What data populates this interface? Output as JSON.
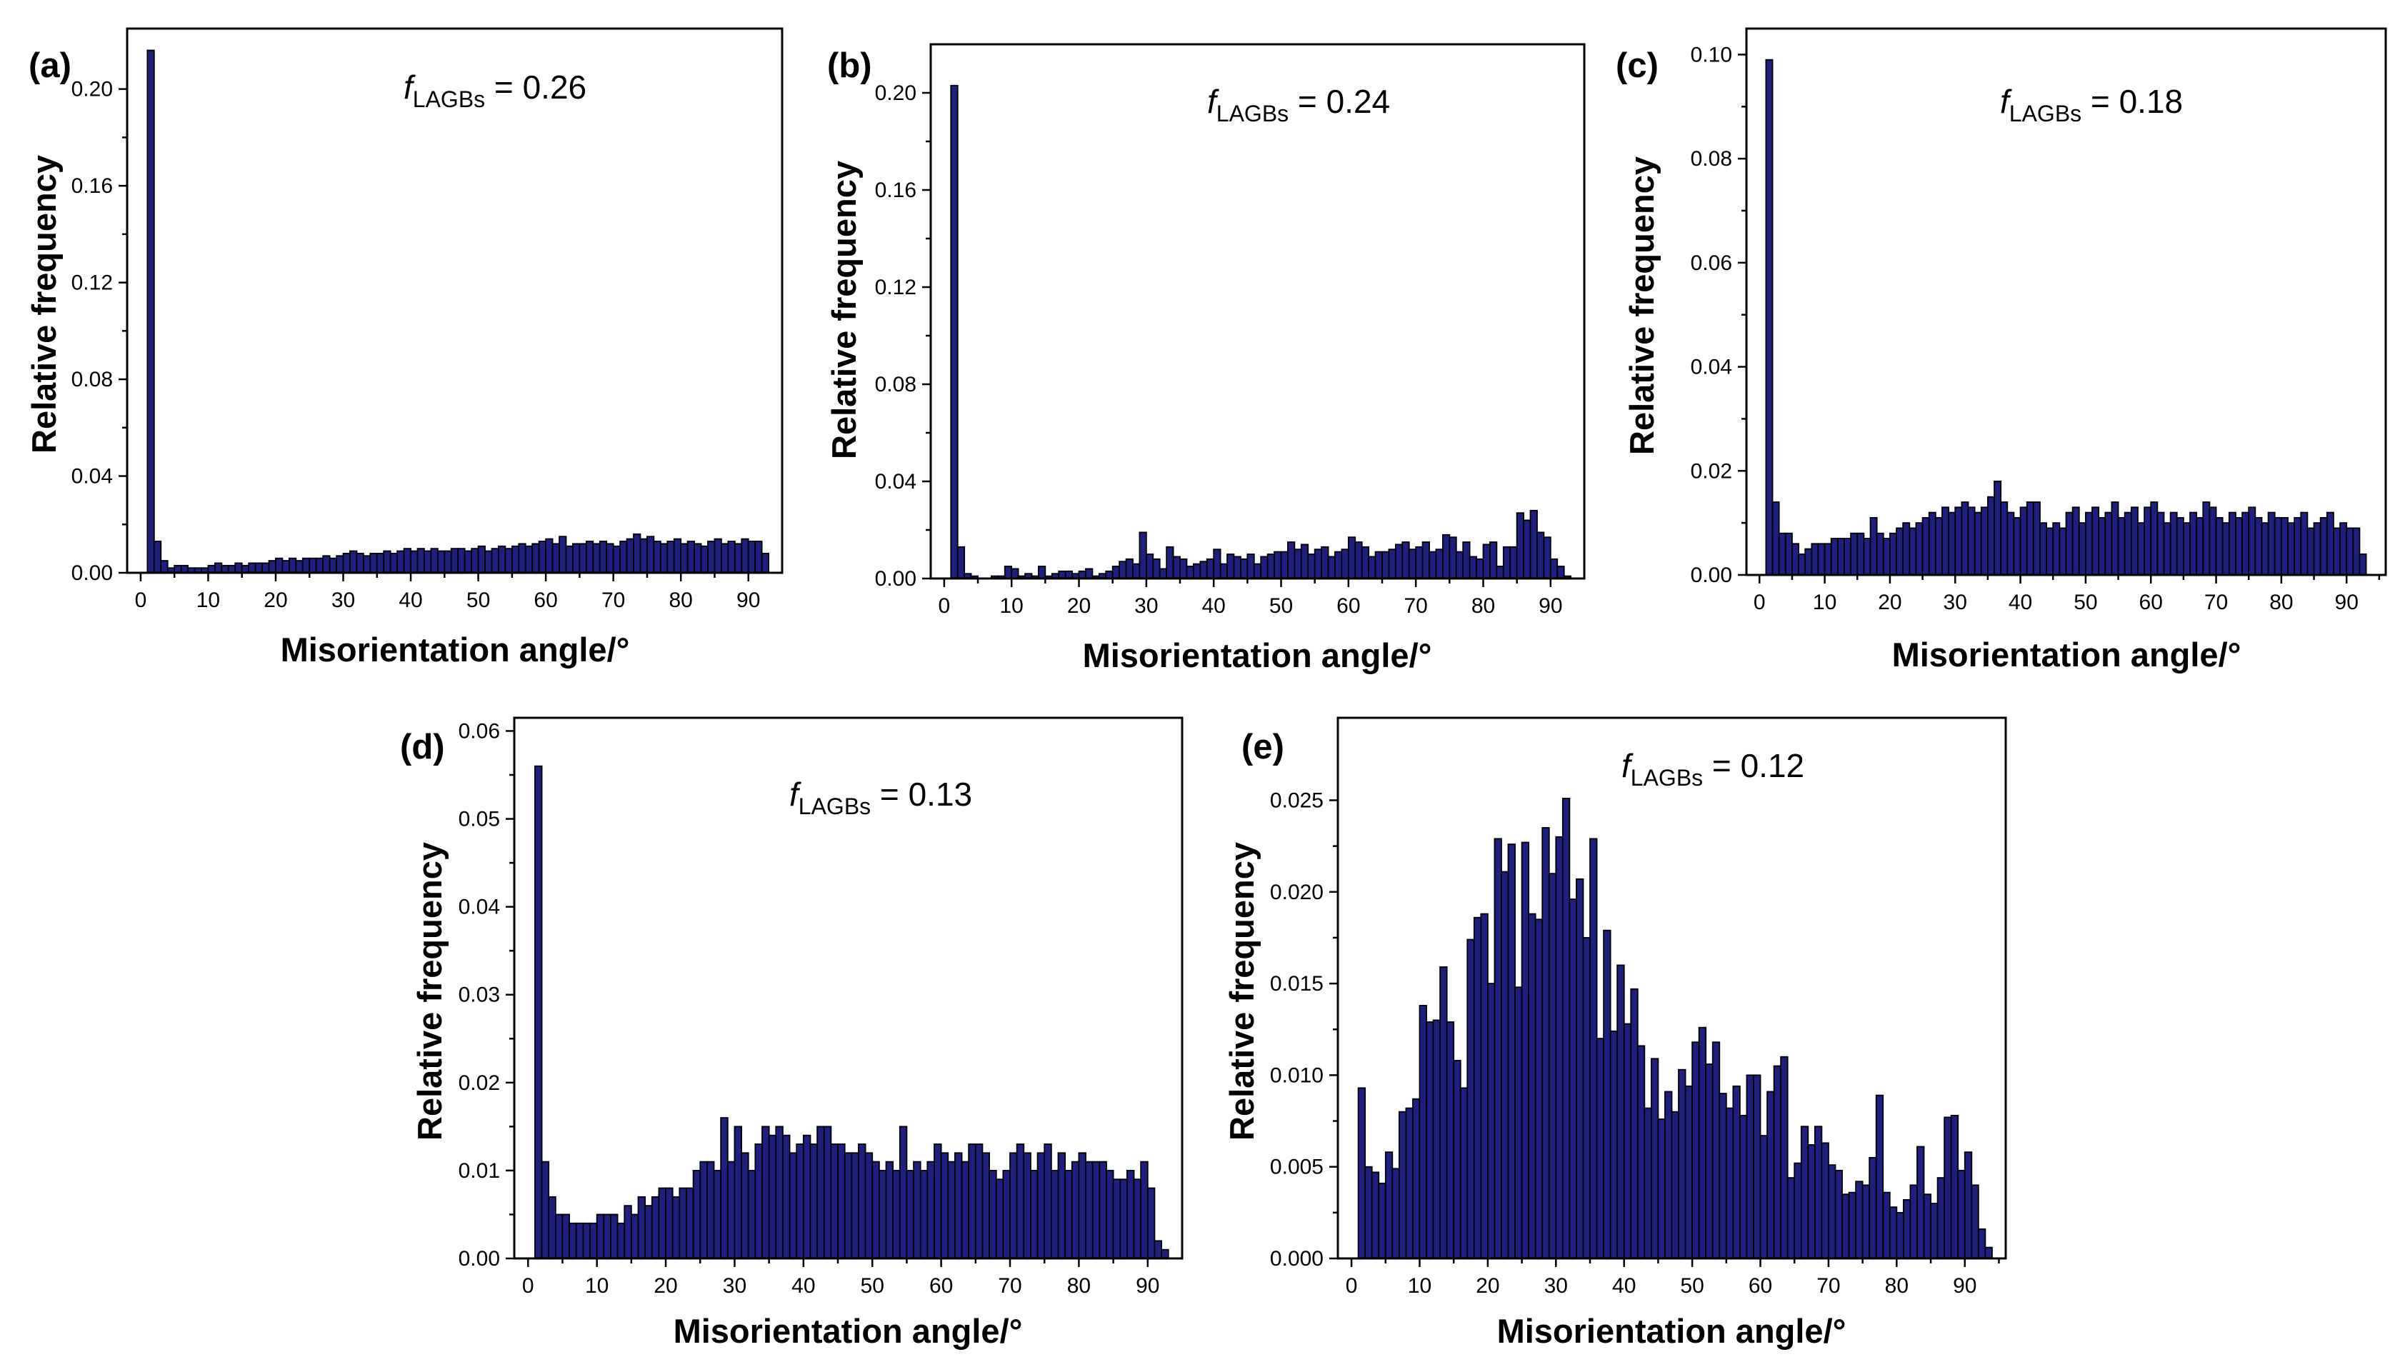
{
  "figure": "Misorientation angle distributions, panels (a)-(e)",
  "chart_data": [
    {
      "type": "bar",
      "panel_label": "(a)",
      "annotation": {
        "symbol": "f",
        "subscript": "LAGBs",
        "text": " = 0.26"
      },
      "xlabel": "Misorientation angle/°",
      "ylabel": "Relative frequency",
      "xlim": [
        -2,
        95
      ],
      "ylim": [
        0,
        0.225
      ],
      "xticks": [
        0,
        10,
        20,
        30,
        40,
        50,
        60,
        70,
        80,
        90
      ],
      "yticks": [
        0.0,
        0.04,
        0.08,
        0.12,
        0.16,
        0.2
      ],
      "ytick_labels": [
        "0.00",
        "0.04",
        "0.08",
        "0.12",
        "0.16",
        "0.20"
      ],
      "bin_width": 1,
      "bin_start": 1,
      "values": [
        0.216,
        0.013,
        0.005,
        0.002,
        0.003,
        0.003,
        0.002,
        0.002,
        0.002,
        0.003,
        0.004,
        0.003,
        0.003,
        0.004,
        0.003,
        0.004,
        0.004,
        0.004,
        0.005,
        0.006,
        0.005,
        0.006,
        0.005,
        0.006,
        0.006,
        0.006,
        0.007,
        0.006,
        0.007,
        0.008,
        0.009,
        0.008,
        0.007,
        0.008,
        0.008,
        0.009,
        0.008,
        0.009,
        0.01,
        0.009,
        0.01,
        0.009,
        0.01,
        0.009,
        0.009,
        0.01,
        0.01,
        0.009,
        0.01,
        0.011,
        0.009,
        0.01,
        0.011,
        0.01,
        0.011,
        0.012,
        0.011,
        0.012,
        0.013,
        0.014,
        0.012,
        0.015,
        0.011,
        0.012,
        0.012,
        0.013,
        0.012,
        0.013,
        0.012,
        0.011,
        0.013,
        0.014,
        0.016,
        0.014,
        0.015,
        0.013,
        0.012,
        0.013,
        0.014,
        0.012,
        0.013,
        0.012,
        0.011,
        0.013,
        0.014,
        0.012,
        0.013,
        0.012,
        0.014,
        0.013,
        0.013,
        0.008
      ]
    },
    {
      "type": "bar",
      "panel_label": "(b)",
      "annotation": {
        "symbol": "f",
        "subscript": "LAGBs",
        "text": " = 0.24"
      },
      "xlabel": "Misorientation angle/°",
      "ylabel": "Relative frequency",
      "xlim": [
        -2,
        95
      ],
      "ylim": [
        0,
        0.22
      ],
      "xticks": [
        0,
        10,
        20,
        30,
        40,
        50,
        60,
        70,
        80,
        90
      ],
      "yticks": [
        0.0,
        0.04,
        0.08,
        0.12,
        0.16,
        0.2
      ],
      "ytick_labels": [
        "0.00",
        "0.04",
        "0.08",
        "0.12",
        "0.16",
        "0.20"
      ],
      "bin_width": 1,
      "bin_start": 1,
      "values": [
        0.203,
        0.013,
        0.002,
        0.001,
        0.0,
        0.0,
        0.001,
        0.001,
        0.005,
        0.004,
        0.001,
        0.002,
        0.001,
        0.005,
        0.001,
        0.002,
        0.003,
        0.003,
        0.002,
        0.003,
        0.004,
        0.001,
        0.002,
        0.003,
        0.005,
        0.007,
        0.008,
        0.006,
        0.019,
        0.01,
        0.008,
        0.004,
        0.013,
        0.009,
        0.008,
        0.005,
        0.006,
        0.007,
        0.008,
        0.012,
        0.006,
        0.01,
        0.009,
        0.008,
        0.01,
        0.006,
        0.009,
        0.01,
        0.011,
        0.011,
        0.015,
        0.012,
        0.014,
        0.01,
        0.012,
        0.013,
        0.009,
        0.011,
        0.012,
        0.017,
        0.015,
        0.013,
        0.009,
        0.011,
        0.011,
        0.012,
        0.014,
        0.015,
        0.012,
        0.013,
        0.015,
        0.011,
        0.012,
        0.018,
        0.017,
        0.011,
        0.015,
        0.009,
        0.008,
        0.014,
        0.015,
        0.005,
        0.013,
        0.013,
        0.027,
        0.024,
        0.028,
        0.019,
        0.017,
        0.008,
        0.005,
        0.001
      ]
    },
    {
      "type": "bar",
      "panel_label": "(c)",
      "annotation": {
        "symbol": "f",
        "subscript": "LAGBs",
        "text": " = 0.18"
      },
      "xlabel": "Misorientation angle/°",
      "ylabel": "Relative frequency",
      "xlim": [
        -2,
        96
      ],
      "ylim": [
        0,
        0.105
      ],
      "xticks": [
        0,
        10,
        20,
        30,
        40,
        50,
        60,
        70,
        80,
        90
      ],
      "yticks": [
        0.0,
        0.02,
        0.04,
        0.06,
        0.08,
        0.1
      ],
      "ytick_labels": [
        "0.00",
        "0.02",
        "0.04",
        "0.06",
        "0.08",
        "0.10"
      ],
      "bin_width": 1,
      "bin_start": 1,
      "values": [
        0.099,
        0.014,
        0.008,
        0.008,
        0.006,
        0.004,
        0.005,
        0.006,
        0.006,
        0.006,
        0.007,
        0.007,
        0.007,
        0.008,
        0.008,
        0.007,
        0.011,
        0.008,
        0.007,
        0.008,
        0.009,
        0.01,
        0.009,
        0.01,
        0.011,
        0.012,
        0.011,
        0.013,
        0.012,
        0.013,
        0.014,
        0.013,
        0.012,
        0.013,
        0.015,
        0.018,
        0.014,
        0.012,
        0.011,
        0.013,
        0.014,
        0.014,
        0.01,
        0.009,
        0.01,
        0.009,
        0.012,
        0.013,
        0.01,
        0.012,
        0.013,
        0.011,
        0.012,
        0.014,
        0.011,
        0.012,
        0.013,
        0.01,
        0.013,
        0.014,
        0.012,
        0.01,
        0.012,
        0.011,
        0.01,
        0.012,
        0.011,
        0.014,
        0.013,
        0.011,
        0.01,
        0.012,
        0.011,
        0.012,
        0.013,
        0.011,
        0.01,
        0.012,
        0.011,
        0.011,
        0.01,
        0.011,
        0.012,
        0.009,
        0.01,
        0.011,
        0.012,
        0.009,
        0.01,
        0.009,
        0.009,
        0.004
      ]
    },
    {
      "type": "bar",
      "panel_label": "(d)",
      "annotation": {
        "symbol": "f",
        "subscript": "LAGBs",
        "text": " = 0.13"
      },
      "xlabel": "Misorientation angle/°",
      "ylabel": "Relative frequency",
      "xlim": [
        -2,
        95
      ],
      "ylim": [
        0,
        0.0615
      ],
      "xticks": [
        0,
        10,
        20,
        30,
        40,
        50,
        60,
        70,
        80,
        90
      ],
      "yticks": [
        0.0,
        0.01,
        0.02,
        0.03,
        0.04,
        0.05,
        0.06
      ],
      "ytick_labels": [
        "0.00",
        "0.01",
        "0.02",
        "0.03",
        "0.04",
        "0.05",
        "0.06"
      ],
      "bin_width": 1,
      "bin_start": 1,
      "values": [
        0.056,
        0.011,
        0.007,
        0.005,
        0.005,
        0.004,
        0.004,
        0.004,
        0.004,
        0.005,
        0.005,
        0.005,
        0.004,
        0.006,
        0.005,
        0.007,
        0.006,
        0.007,
        0.008,
        0.008,
        0.007,
        0.008,
        0.008,
        0.01,
        0.011,
        0.011,
        0.01,
        0.016,
        0.011,
        0.015,
        0.012,
        0.01,
        0.013,
        0.015,
        0.014,
        0.015,
        0.014,
        0.012,
        0.013,
        0.014,
        0.013,
        0.015,
        0.015,
        0.013,
        0.013,
        0.012,
        0.012,
        0.013,
        0.012,
        0.011,
        0.01,
        0.011,
        0.01,
        0.015,
        0.01,
        0.011,
        0.01,
        0.011,
        0.013,
        0.012,
        0.011,
        0.012,
        0.011,
        0.013,
        0.013,
        0.012,
        0.01,
        0.009,
        0.01,
        0.012,
        0.013,
        0.012,
        0.01,
        0.012,
        0.013,
        0.01,
        0.012,
        0.01,
        0.011,
        0.012,
        0.011,
        0.011,
        0.011,
        0.01,
        0.009,
        0.009,
        0.01,
        0.009,
        0.011,
        0.008,
        0.002,
        0.001
      ]
    },
    {
      "type": "bar",
      "panel_label": "(e)",
      "annotation": {
        "symbol": "f",
        "subscript": "LAGBs",
        "text": " = 0.12"
      },
      "xlabel": "Misorientation angle/°",
      "ylabel": "Relative frequency",
      "xlim": [
        -2,
        96
      ],
      "ylim": [
        0,
        0.0295
      ],
      "xticks": [
        0,
        10,
        20,
        30,
        40,
        50,
        60,
        70,
        80,
        90
      ],
      "yticks": [
        0.0,
        0.005,
        0.01,
        0.015,
        0.02,
        0.025
      ],
      "ytick_labels": [
        "0.000",
        "0.005",
        "0.010",
        "0.015",
        "0.020",
        "0.025"
      ],
      "bin_width": 1,
      "bin_start": 1,
      "values": [
        0.0093,
        0.005,
        0.0047,
        0.0041,
        0.0058,
        0.0049,
        0.008,
        0.0082,
        0.0087,
        0.0138,
        0.0129,
        0.013,
        0.0159,
        0.0129,
        0.0108,
        0.0093,
        0.0174,
        0.0186,
        0.0188,
        0.015,
        0.0229,
        0.0211,
        0.0226,
        0.0148,
        0.0227,
        0.0188,
        0.0185,
        0.0235,
        0.021,
        0.023,
        0.0251,
        0.0196,
        0.0207,
        0.0175,
        0.0229,
        0.012,
        0.0179,
        0.0124,
        0.016,
        0.0128,
        0.0147,
        0.0116,
        0.0082,
        0.0109,
        0.0076,
        0.0091,
        0.008,
        0.0103,
        0.0094,
        0.0118,
        0.0126,
        0.0106,
        0.0118,
        0.009,
        0.0082,
        0.0094,
        0.0078,
        0.01,
        0.01,
        0.0067,
        0.0091,
        0.0105,
        0.011,
        0.0044,
        0.0052,
        0.0072,
        0.0062,
        0.0072,
        0.0063,
        0.0051,
        0.0048,
        0.0035,
        0.0036,
        0.0042,
        0.004,
        0.0055,
        0.0089,
        0.0036,
        0.0028,
        0.0025,
        0.0032,
        0.004,
        0.0061,
        0.0035,
        0.003,
        0.0044,
        0.0077,
        0.0078,
        0.0048,
        0.0058,
        0.004,
        0.0016,
        0.0006
      ]
    }
  ]
}
